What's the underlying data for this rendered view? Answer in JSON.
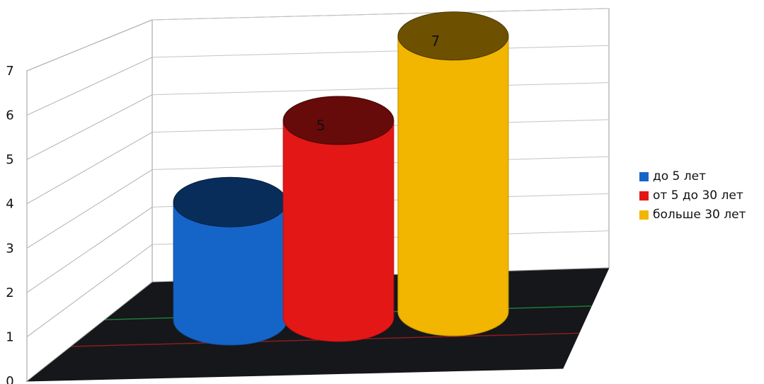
{
  "chart_data": {
    "type": "bar",
    "style": "3d-cylinder",
    "title": "",
    "xlabel": "",
    "ylabel": "",
    "ylim": [
      0,
      7
    ],
    "yticks": [
      "0",
      "1",
      "2",
      "3",
      "4",
      "5",
      "6",
      "7"
    ],
    "grid": true,
    "legend_position": "right",
    "series": [
      {
        "name": "до 5 лет",
        "value": 3,
        "color": "#1565c9",
        "data_label": ""
      },
      {
        "name": "от 5 до 30 лет",
        "value": 5,
        "color": "#e41717",
        "data_label": "5"
      },
      {
        "name": "больше 30 лет",
        "value": 7,
        "color": "#f2b500",
        "data_label": "7"
      }
    ]
  }
}
